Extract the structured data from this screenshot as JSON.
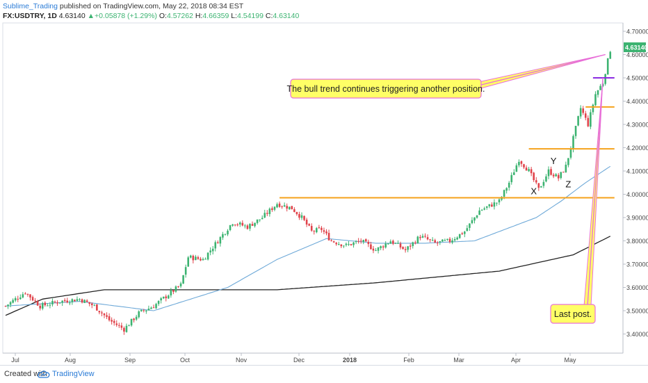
{
  "header": {
    "author": "Sublime_Trading",
    "published_text": " published on TradingView.com, May 22, 2018 08:34 EST",
    "symbol": "FX:USDTRY, 1D",
    "last": "4.63140",
    "change": "+0.05878 (+1.29%)",
    "open_label": "O:",
    "open": "4.57262",
    "high_label": "H:",
    "high": "4.66359",
    "low_label": "L:",
    "low": "4.54199",
    "close_label": "C:",
    "close": "4.63140"
  },
  "footer": {
    "created": "Created with",
    "brand": "TradingView"
  },
  "colors": {
    "up": "#3cb371",
    "down": "#e0424a",
    "ma50": "#6ea9d8",
    "ma200": "#222222",
    "level": "#f5a21b",
    "pink": "#e86fd8",
    "purple": "#8a2be2",
    "note_bg": "#ffff66",
    "price_tag": "#3cb371"
  },
  "chart_data": {
    "type": "candlestick",
    "symbol": "FX:USDTRY",
    "timeframe": "1D",
    "x_ticks": [
      "Jul",
      "Aug",
      "Sep",
      "Oct",
      "Nov",
      "Dec",
      "2018",
      "Feb",
      "Mar",
      "Apr",
      "May"
    ],
    "y_ticks": [
      "4.70000",
      "4.60000",
      "4.50000",
      "4.40000",
      "4.30000",
      "4.20000",
      "4.10000",
      "4.00000",
      "3.90000",
      "3.80000",
      "3.70000",
      "3.60000",
      "3.50000",
      "3.40000"
    ],
    "ylim": [
      3.365,
      4.73
    ],
    "last_price_tag": "4.63140",
    "close_anchors": [
      [
        0,
        3.52
      ],
      [
        8,
        3.58
      ],
      [
        14,
        3.52
      ],
      [
        22,
        3.54
      ],
      [
        30,
        3.55
      ],
      [
        36,
        3.52
      ],
      [
        42,
        3.46
      ],
      [
        48,
        3.42
      ],
      [
        54,
        3.49
      ],
      [
        60,
        3.52
      ],
      [
        66,
        3.57
      ],
      [
        71,
        3.61
      ],
      [
        74,
        3.73
      ],
      [
        80,
        3.72
      ],
      [
        86,
        3.8
      ],
      [
        92,
        3.88
      ],
      [
        98,
        3.86
      ],
      [
        104,
        3.9
      ],
      [
        110,
        3.96
      ],
      [
        116,
        3.94
      ],
      [
        120,
        3.9
      ],
      [
        124,
        3.84
      ],
      [
        128,
        3.85
      ],
      [
        132,
        3.8
      ],
      [
        138,
        3.78
      ],
      [
        144,
        3.8
      ],
      [
        150,
        3.76
      ],
      [
        156,
        3.8
      ],
      [
        162,
        3.76
      ],
      [
        168,
        3.82
      ],
      [
        174,
        3.79
      ],
      [
        180,
        3.8
      ],
      [
        186,
        3.84
      ],
      [
        192,
        3.93
      ],
      [
        196,
        3.95
      ],
      [
        200,
        3.97
      ],
      [
        204,
        4.05
      ],
      [
        208,
        4.15
      ],
      [
        212,
        4.1
      ],
      [
        216,
        4.02
      ],
      [
        220,
        4.1
      ],
      [
        224,
        4.07
      ],
      [
        227,
        4.12
      ],
      [
        230,
        4.24
      ],
      [
        233,
        4.37
      ],
      [
        236,
        4.3
      ],
      [
        239,
        4.43
      ],
      [
        242,
        4.48
      ],
      [
        245,
        4.62
      ]
    ],
    "ma50_anchors": [
      [
        0,
        3.52
      ],
      [
        30,
        3.54
      ],
      [
        60,
        3.5
      ],
      [
        75,
        3.55
      ],
      [
        90,
        3.6
      ],
      [
        110,
        3.72
      ],
      [
        130,
        3.81
      ],
      [
        150,
        3.79
      ],
      [
        170,
        3.79
      ],
      [
        190,
        3.8
      ],
      [
        205,
        3.86
      ],
      [
        215,
        3.9
      ],
      [
        225,
        3.97
      ],
      [
        235,
        4.05
      ],
      [
        245,
        4.12
      ]
    ],
    "ma200_anchors": [
      [
        0,
        3.48
      ],
      [
        15,
        3.55
      ],
      [
        40,
        3.59
      ],
      [
        110,
        3.59
      ],
      [
        150,
        3.62
      ],
      [
        200,
        3.67
      ],
      [
        230,
        3.74
      ],
      [
        245,
        3.82
      ]
    ],
    "levels": [
      {
        "price": 3.985,
        "from": 111,
        "to": 245,
        "color": "orange"
      },
      {
        "price": 4.195,
        "from": 212,
        "to": 245,
        "color": "orange"
      },
      {
        "price": 4.375,
        "from": 235,
        "to": 245,
        "color": "orange"
      },
      {
        "price": 4.5,
        "from": 238,
        "to": 245,
        "color": "purple"
      }
    ],
    "labels": [
      {
        "text": "X",
        "day": 214,
        "price": 4.0
      },
      {
        "text": "Y",
        "day": 222,
        "price": 4.13
      },
      {
        "text": "Z",
        "day": 228,
        "price": 4.03
      }
    ],
    "annotations": [
      {
        "text": "The bull trend continues triggering another position.",
        "target_day": 243,
        "target_price": 4.6
      },
      {
        "text": "Last post.",
        "target_day": 242,
        "target_price": 4.5
      }
    ]
  }
}
